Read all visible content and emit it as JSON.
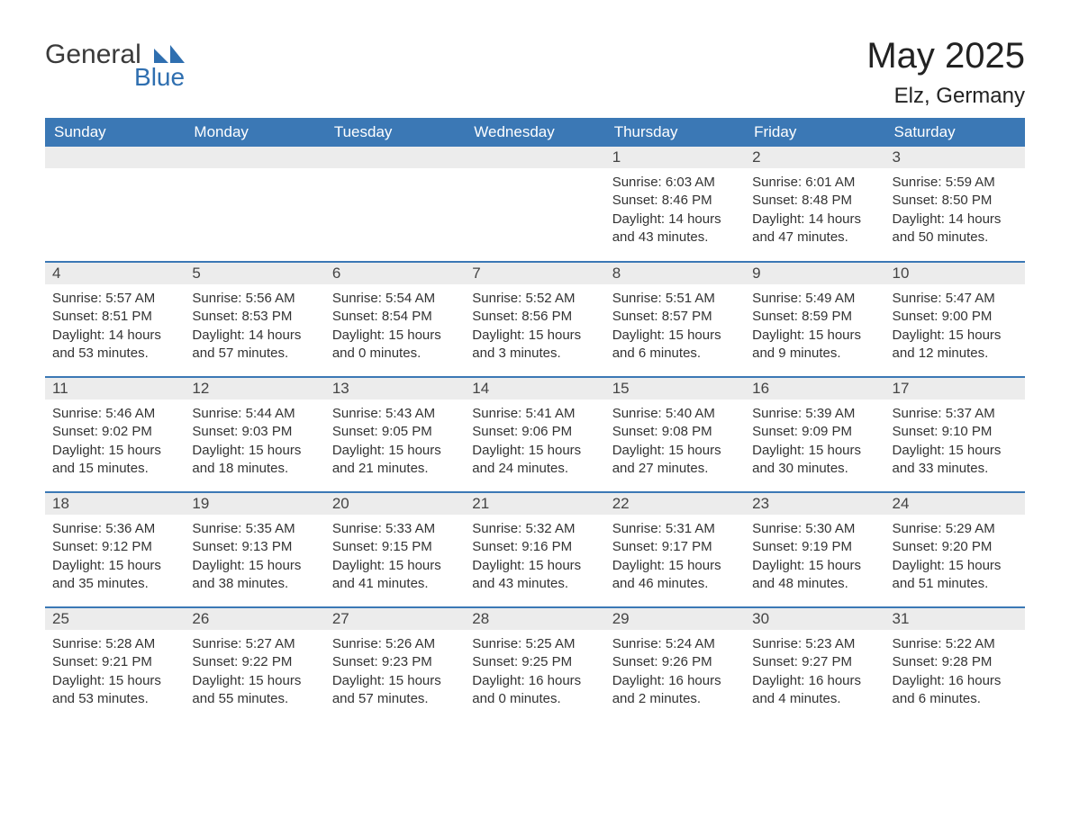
{
  "brand": {
    "name_part1": "General",
    "name_part2": "Blue",
    "color_primary": "#3b78b5",
    "color_text": "#3a3a3a"
  },
  "title": "May 2025",
  "location": "Elz, Germany",
  "colors": {
    "header_bg": "#3b78b5",
    "header_text": "#ffffff",
    "daynum_bg": "#ececec",
    "body_text": "#333333",
    "row_border": "#3b78b5",
    "page_bg": "#ffffff"
  },
  "typography": {
    "month_title_fontsize": 40,
    "location_fontsize": 24,
    "header_fontsize": 17,
    "daynum_fontsize": 17,
    "body_fontsize": 15
  },
  "weekdays": [
    "Sunday",
    "Monday",
    "Tuesday",
    "Wednesday",
    "Thursday",
    "Friday",
    "Saturday"
  ],
  "weeks": [
    [
      {
        "blank": true
      },
      {
        "blank": true
      },
      {
        "blank": true
      },
      {
        "blank": true
      },
      {
        "day": "1",
        "sunrise": "6:03 AM",
        "sunset": "8:46 PM",
        "daylight": "14 hours and 43 minutes."
      },
      {
        "day": "2",
        "sunrise": "6:01 AM",
        "sunset": "8:48 PM",
        "daylight": "14 hours and 47 minutes."
      },
      {
        "day": "3",
        "sunrise": "5:59 AM",
        "sunset": "8:50 PM",
        "daylight": "14 hours and 50 minutes."
      }
    ],
    [
      {
        "day": "4",
        "sunrise": "5:57 AM",
        "sunset": "8:51 PM",
        "daylight": "14 hours and 53 minutes."
      },
      {
        "day": "5",
        "sunrise": "5:56 AM",
        "sunset": "8:53 PM",
        "daylight": "14 hours and 57 minutes."
      },
      {
        "day": "6",
        "sunrise": "5:54 AM",
        "sunset": "8:54 PM",
        "daylight": "15 hours and 0 minutes."
      },
      {
        "day": "7",
        "sunrise": "5:52 AM",
        "sunset": "8:56 PM",
        "daylight": "15 hours and 3 minutes."
      },
      {
        "day": "8",
        "sunrise": "5:51 AM",
        "sunset": "8:57 PM",
        "daylight": "15 hours and 6 minutes."
      },
      {
        "day": "9",
        "sunrise": "5:49 AM",
        "sunset": "8:59 PM",
        "daylight": "15 hours and 9 minutes."
      },
      {
        "day": "10",
        "sunrise": "5:47 AM",
        "sunset": "9:00 PM",
        "daylight": "15 hours and 12 minutes."
      }
    ],
    [
      {
        "day": "11",
        "sunrise": "5:46 AM",
        "sunset": "9:02 PM",
        "daylight": "15 hours and 15 minutes."
      },
      {
        "day": "12",
        "sunrise": "5:44 AM",
        "sunset": "9:03 PM",
        "daylight": "15 hours and 18 minutes."
      },
      {
        "day": "13",
        "sunrise": "5:43 AM",
        "sunset": "9:05 PM",
        "daylight": "15 hours and 21 minutes."
      },
      {
        "day": "14",
        "sunrise": "5:41 AM",
        "sunset": "9:06 PM",
        "daylight": "15 hours and 24 minutes."
      },
      {
        "day": "15",
        "sunrise": "5:40 AM",
        "sunset": "9:08 PM",
        "daylight": "15 hours and 27 minutes."
      },
      {
        "day": "16",
        "sunrise": "5:39 AM",
        "sunset": "9:09 PM",
        "daylight": "15 hours and 30 minutes."
      },
      {
        "day": "17",
        "sunrise": "5:37 AM",
        "sunset": "9:10 PM",
        "daylight": "15 hours and 33 minutes."
      }
    ],
    [
      {
        "day": "18",
        "sunrise": "5:36 AM",
        "sunset": "9:12 PM",
        "daylight": "15 hours and 35 minutes."
      },
      {
        "day": "19",
        "sunrise": "5:35 AM",
        "sunset": "9:13 PM",
        "daylight": "15 hours and 38 minutes."
      },
      {
        "day": "20",
        "sunrise": "5:33 AM",
        "sunset": "9:15 PM",
        "daylight": "15 hours and 41 minutes."
      },
      {
        "day": "21",
        "sunrise": "5:32 AM",
        "sunset": "9:16 PM",
        "daylight": "15 hours and 43 minutes."
      },
      {
        "day": "22",
        "sunrise": "5:31 AM",
        "sunset": "9:17 PM",
        "daylight": "15 hours and 46 minutes."
      },
      {
        "day": "23",
        "sunrise": "5:30 AM",
        "sunset": "9:19 PM",
        "daylight": "15 hours and 48 minutes."
      },
      {
        "day": "24",
        "sunrise": "5:29 AM",
        "sunset": "9:20 PM",
        "daylight": "15 hours and 51 minutes."
      }
    ],
    [
      {
        "day": "25",
        "sunrise": "5:28 AM",
        "sunset": "9:21 PM",
        "daylight": "15 hours and 53 minutes."
      },
      {
        "day": "26",
        "sunrise": "5:27 AM",
        "sunset": "9:22 PM",
        "daylight": "15 hours and 55 minutes."
      },
      {
        "day": "27",
        "sunrise": "5:26 AM",
        "sunset": "9:23 PM",
        "daylight": "15 hours and 57 minutes."
      },
      {
        "day": "28",
        "sunrise": "5:25 AM",
        "sunset": "9:25 PM",
        "daylight": "16 hours and 0 minutes."
      },
      {
        "day": "29",
        "sunrise": "5:24 AM",
        "sunset": "9:26 PM",
        "daylight": "16 hours and 2 minutes."
      },
      {
        "day": "30",
        "sunrise": "5:23 AM",
        "sunset": "9:27 PM",
        "daylight": "16 hours and 4 minutes."
      },
      {
        "day": "31",
        "sunrise": "5:22 AM",
        "sunset": "9:28 PM",
        "daylight": "16 hours and 6 minutes."
      }
    ]
  ],
  "labels": {
    "sunrise": "Sunrise:",
    "sunset": "Sunset:",
    "daylight": "Daylight:"
  }
}
